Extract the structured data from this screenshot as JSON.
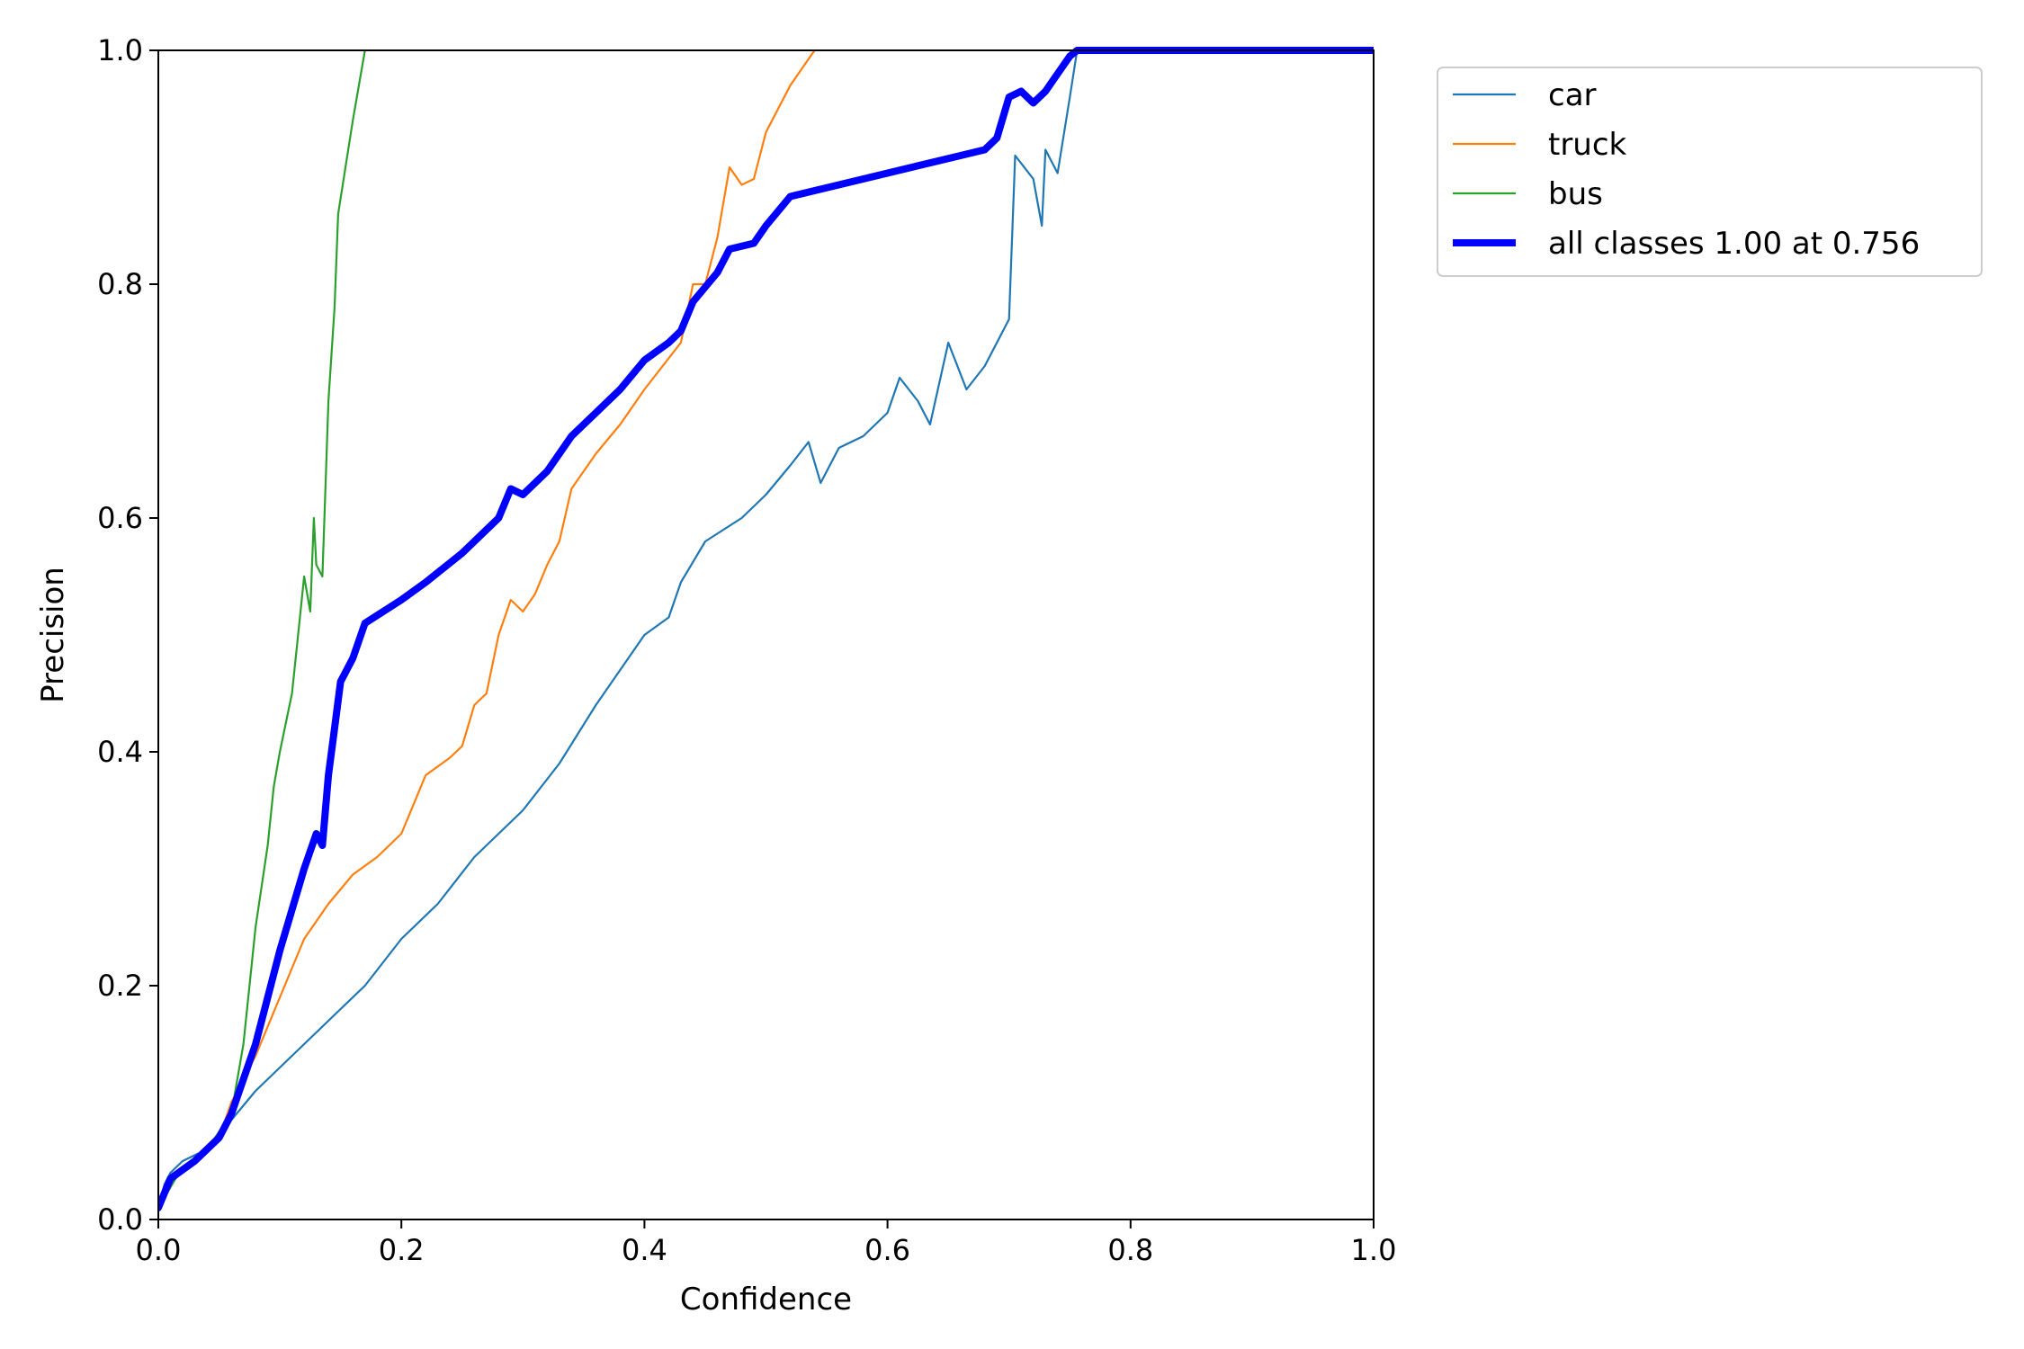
{
  "chart_data": {
    "type": "line",
    "title": "",
    "xlabel": "Confidence",
    "ylabel": "Precision",
    "xlim": [
      0,
      1
    ],
    "ylim": [
      0,
      1
    ],
    "xticks": [
      "0.0",
      "0.2",
      "0.4",
      "0.6",
      "0.8",
      "1.0"
    ],
    "yticks": [
      "0.0",
      "0.2",
      "0.4",
      "0.6",
      "0.8",
      "1.0"
    ],
    "grid": false,
    "legend_position": "outside-top-right",
    "series": [
      {
        "name": "car",
        "color": "#1f77b4",
        "points": [
          [
            0.0,
            0.01
          ],
          [
            0.005,
            0.03
          ],
          [
            0.01,
            0.04
          ],
          [
            0.02,
            0.05
          ],
          [
            0.04,
            0.06
          ],
          [
            0.06,
            0.085
          ],
          [
            0.08,
            0.11
          ],
          [
            0.1,
            0.13
          ],
          [
            0.13,
            0.16
          ],
          [
            0.15,
            0.18
          ],
          [
            0.17,
            0.2
          ],
          [
            0.2,
            0.24
          ],
          [
            0.23,
            0.27
          ],
          [
            0.26,
            0.31
          ],
          [
            0.3,
            0.35
          ],
          [
            0.33,
            0.39
          ],
          [
            0.36,
            0.44
          ],
          [
            0.38,
            0.47
          ],
          [
            0.4,
            0.5
          ],
          [
            0.42,
            0.515
          ],
          [
            0.43,
            0.545
          ],
          [
            0.45,
            0.58
          ],
          [
            0.48,
            0.6
          ],
          [
            0.5,
            0.62
          ],
          [
            0.52,
            0.645
          ],
          [
            0.535,
            0.665
          ],
          [
            0.545,
            0.63
          ],
          [
            0.56,
            0.66
          ],
          [
            0.58,
            0.67
          ],
          [
            0.6,
            0.69
          ],
          [
            0.61,
            0.72
          ],
          [
            0.625,
            0.7
          ],
          [
            0.635,
            0.68
          ],
          [
            0.65,
            0.75
          ],
          [
            0.665,
            0.71
          ],
          [
            0.68,
            0.73
          ],
          [
            0.69,
            0.75
          ],
          [
            0.7,
            0.77
          ],
          [
            0.705,
            0.91
          ],
          [
            0.72,
            0.89
          ],
          [
            0.727,
            0.85
          ],
          [
            0.73,
            0.915
          ],
          [
            0.74,
            0.895
          ],
          [
            0.75,
            0.96
          ],
          [
            0.756,
            1.0
          ],
          [
            1.0,
            1.0
          ]
        ]
      },
      {
        "name": "truck",
        "color": "#ff7f0e",
        "points": [
          [
            0.0,
            0.01
          ],
          [
            0.01,
            0.035
          ],
          [
            0.03,
            0.05
          ],
          [
            0.05,
            0.07
          ],
          [
            0.06,
            0.1
          ],
          [
            0.08,
            0.14
          ],
          [
            0.1,
            0.19
          ],
          [
            0.12,
            0.24
          ],
          [
            0.14,
            0.27
          ],
          [
            0.16,
            0.295
          ],
          [
            0.18,
            0.31
          ],
          [
            0.2,
            0.33
          ],
          [
            0.22,
            0.38
          ],
          [
            0.24,
            0.395
          ],
          [
            0.25,
            0.405
          ],
          [
            0.26,
            0.44
          ],
          [
            0.27,
            0.45
          ],
          [
            0.28,
            0.5
          ],
          [
            0.29,
            0.53
          ],
          [
            0.3,
            0.52
          ],
          [
            0.31,
            0.535
          ],
          [
            0.32,
            0.56
          ],
          [
            0.33,
            0.58
          ],
          [
            0.34,
            0.625
          ],
          [
            0.36,
            0.655
          ],
          [
            0.38,
            0.68
          ],
          [
            0.4,
            0.71
          ],
          [
            0.43,
            0.75
          ],
          [
            0.44,
            0.8
          ],
          [
            0.45,
            0.8
          ],
          [
            0.46,
            0.84
          ],
          [
            0.47,
            0.9
          ],
          [
            0.48,
            0.885
          ],
          [
            0.49,
            0.89
          ],
          [
            0.5,
            0.93
          ],
          [
            0.52,
            0.97
          ],
          [
            0.54,
            1.0
          ]
        ]
      },
      {
        "name": "bus",
        "color": "#2ca02c",
        "points": [
          [
            0.0,
            0.01
          ],
          [
            0.02,
            0.045
          ],
          [
            0.04,
            0.06
          ],
          [
            0.06,
            0.09
          ],
          [
            0.07,
            0.15
          ],
          [
            0.08,
            0.25
          ],
          [
            0.09,
            0.32
          ],
          [
            0.095,
            0.37
          ],
          [
            0.1,
            0.4
          ],
          [
            0.11,
            0.45
          ],
          [
            0.115,
            0.5
          ],
          [
            0.12,
            0.55
          ],
          [
            0.125,
            0.52
          ],
          [
            0.128,
            0.6
          ],
          [
            0.13,
            0.56
          ],
          [
            0.135,
            0.55
          ],
          [
            0.14,
            0.7
          ],
          [
            0.145,
            0.78
          ],
          [
            0.148,
            0.86
          ],
          [
            0.16,
            0.94
          ],
          [
            0.17,
            1.0
          ]
        ]
      },
      {
        "name": "all classes 1.00 at 0.756",
        "color": "#0000ff",
        "bold": true,
        "points": [
          [
            0.0,
            0.01
          ],
          [
            0.01,
            0.035
          ],
          [
            0.03,
            0.05
          ],
          [
            0.05,
            0.07
          ],
          [
            0.06,
            0.09
          ],
          [
            0.08,
            0.15
          ],
          [
            0.1,
            0.23
          ],
          [
            0.12,
            0.3
          ],
          [
            0.13,
            0.33
          ],
          [
            0.135,
            0.32
          ],
          [
            0.14,
            0.38
          ],
          [
            0.145,
            0.42
          ],
          [
            0.15,
            0.46
          ],
          [
            0.16,
            0.48
          ],
          [
            0.17,
            0.51
          ],
          [
            0.2,
            0.53
          ],
          [
            0.22,
            0.545
          ],
          [
            0.25,
            0.57
          ],
          [
            0.28,
            0.6
          ],
          [
            0.29,
            0.625
          ],
          [
            0.3,
            0.62
          ],
          [
            0.32,
            0.64
          ],
          [
            0.34,
            0.67
          ],
          [
            0.36,
            0.69
          ],
          [
            0.38,
            0.71
          ],
          [
            0.4,
            0.735
          ],
          [
            0.42,
            0.75
          ],
          [
            0.43,
            0.76
          ],
          [
            0.44,
            0.785
          ],
          [
            0.46,
            0.81
          ],
          [
            0.47,
            0.83
          ],
          [
            0.49,
            0.835
          ],
          [
            0.5,
            0.85
          ],
          [
            0.52,
            0.875
          ],
          [
            0.54,
            0.88
          ],
          [
            0.56,
            0.885
          ],
          [
            0.58,
            0.89
          ],
          [
            0.6,
            0.895
          ],
          [
            0.62,
            0.9
          ],
          [
            0.64,
            0.905
          ],
          [
            0.66,
            0.91
          ],
          [
            0.68,
            0.915
          ],
          [
            0.69,
            0.925
          ],
          [
            0.7,
            0.96
          ],
          [
            0.71,
            0.965
          ],
          [
            0.72,
            0.955
          ],
          [
            0.73,
            0.965
          ],
          [
            0.74,
            0.98
          ],
          [
            0.75,
            0.995
          ],
          [
            0.756,
            1.0
          ],
          [
            1.0,
            1.0
          ]
        ]
      }
    ]
  }
}
